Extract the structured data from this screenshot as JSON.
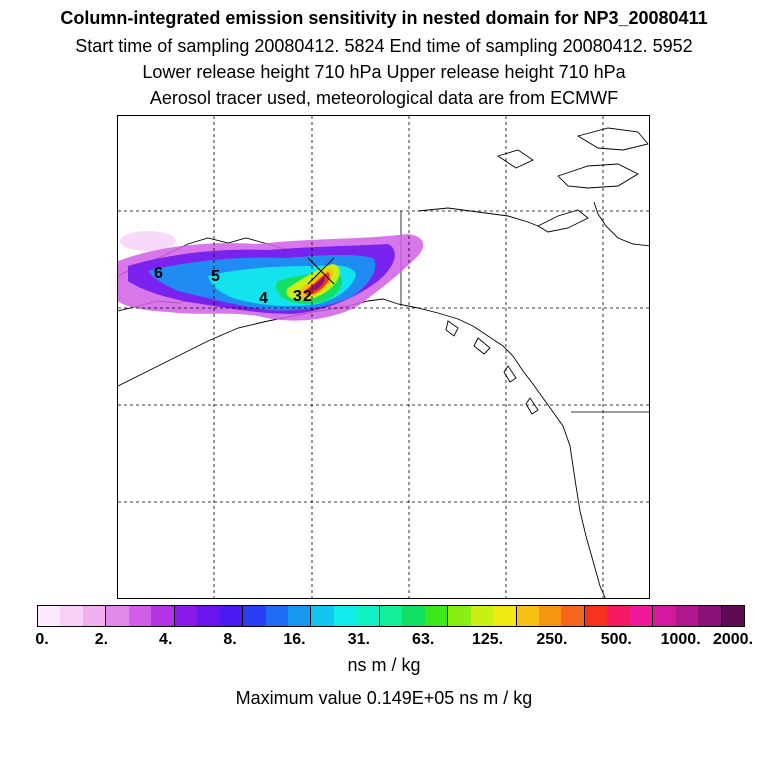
{
  "header": {
    "title": "Column-integrated emission sensitivity in nested domain for NP3_20080411",
    "line2": "Start time of sampling 20080412.  5824     End time of sampling 20080412.  5952",
    "line3": "Lower release height  710 hPa        Upper release height  710 hPa",
    "line4": "Aerosol tracer used, meteorological data are from ECMWF"
  },
  "map": {
    "labels": [
      "6",
      "5",
      "4",
      "3",
      "2"
    ],
    "release_marker": "release-location-cross"
  },
  "colorbar": {
    "colors": [
      "#fde9fd",
      "#f7cff7",
      "#f0b0f0",
      "#e28ae9",
      "#d15fe6",
      "#b431e6",
      "#8a1ae9",
      "#6a14ee",
      "#4a1af0",
      "#2b3ef2",
      "#1f6cf3",
      "#1698f3",
      "#12c6f1",
      "#11ecec",
      "#12f0c7",
      "#14ee98",
      "#12e064",
      "#3ee71a",
      "#8aee12",
      "#c8f012",
      "#f0e812",
      "#f7c012",
      "#f79412",
      "#f5651d",
      "#f5331f",
      "#f51a60",
      "#ee1a9a",
      "#d31a9e",
      "#b0178f",
      "#8a1277",
      "#5e0a52"
    ],
    "tick_labels": [
      "0.",
      "2.",
      "4.",
      "8.",
      "16.",
      "31.",
      "63.",
      "125.",
      "250.",
      "500.",
      "1000.",
      "2000."
    ],
    "units": "ns m / kg",
    "max_value": "Maximum value  0.149E+05 ns m / kg"
  }
}
